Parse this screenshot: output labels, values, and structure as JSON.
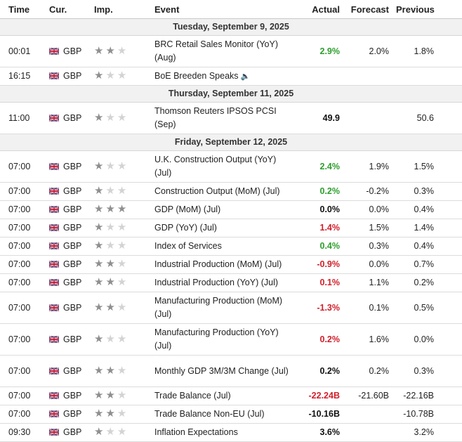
{
  "headers": {
    "time": "Time",
    "cur": "Cur.",
    "imp": "Imp.",
    "event": "Event",
    "actual": "Actual",
    "forecast": "Forecast",
    "previous": "Previous"
  },
  "rows": [
    {
      "type": "date",
      "label": "Tuesday, September 9, 2025"
    },
    {
      "type": "event",
      "time": "00:01",
      "cur": "GBP",
      "imp": 2,
      "event": "BRC Retail Sales Monitor (YoY) (Aug)",
      "actual": "2.9%",
      "actual_color": "green",
      "forecast": "2.0%",
      "previous": "1.8%",
      "h": 45
    },
    {
      "type": "event",
      "time": "16:15",
      "cur": "GBP",
      "imp": 1,
      "event": "BoE Breeden Speaks",
      "speaker": true,
      "actual": "",
      "actual_color": "black",
      "forecast": "",
      "previous": "",
      "h": 26
    },
    {
      "type": "date",
      "label": "Thursday, September 11, 2025"
    },
    {
      "type": "event",
      "time": "11:00",
      "cur": "GBP",
      "imp": 1,
      "event": "Thomson Reuters IPSOS PCSI (Sep)",
      "actual": "49.9",
      "actual_color": "black",
      "forecast": "",
      "previous": "50.6",
      "h": 45
    },
    {
      "type": "date",
      "label": "Friday, September 12, 2025"
    },
    {
      "type": "event",
      "time": "07:00",
      "cur": "GBP",
      "imp": 1,
      "event": "U.K. Construction Output (YoY) (Jul)",
      "actual": "2.4%",
      "actual_color": "green",
      "forecast": "1.9%",
      "previous": "1.5%",
      "h": 45
    },
    {
      "type": "event",
      "time": "07:00",
      "cur": "GBP",
      "imp": 1,
      "event": "Construction Output (MoM) (Jul)",
      "actual": "0.2%",
      "actual_color": "green",
      "forecast": "-0.2%",
      "previous": "0.3%",
      "h": 26
    },
    {
      "type": "event",
      "time": "07:00",
      "cur": "GBP",
      "imp": 3,
      "event": "GDP (MoM) (Jul)",
      "actual": "0.0%",
      "actual_color": "black",
      "forecast": "0.0%",
      "previous": "0.4%",
      "h": 26
    },
    {
      "type": "event",
      "time": "07:00",
      "cur": "GBP",
      "imp": 1,
      "event": "GDP (YoY) (Jul)",
      "actual": "1.4%",
      "actual_color": "red",
      "forecast": "1.5%",
      "previous": "1.4%",
      "h": 26
    },
    {
      "type": "event",
      "time": "07:00",
      "cur": "GBP",
      "imp": 1,
      "event": "Index of Services",
      "actual": "0.4%",
      "actual_color": "green",
      "forecast": "0.3%",
      "previous": "0.4%",
      "h": 26
    },
    {
      "type": "event",
      "time": "07:00",
      "cur": "GBP",
      "imp": 2,
      "event": "Industrial Production (MoM) (Jul)",
      "actual": "-0.9%",
      "actual_color": "red",
      "forecast": "0.0%",
      "previous": "0.7%",
      "h": 26
    },
    {
      "type": "event",
      "time": "07:00",
      "cur": "GBP",
      "imp": 2,
      "event": "Industrial Production (YoY) (Jul)",
      "actual": "0.1%",
      "actual_color": "red",
      "forecast": "1.1%",
      "previous": "0.2%",
      "h": 26
    },
    {
      "type": "event",
      "time": "07:00",
      "cur": "GBP",
      "imp": 2,
      "event": "Manufacturing Production (MoM) (Jul)",
      "actual": "-1.3%",
      "actual_color": "red",
      "forecast": "0.1%",
      "previous": "0.5%",
      "h": 45
    },
    {
      "type": "event",
      "time": "07:00",
      "cur": "GBP",
      "imp": 1,
      "event": "Manufacturing Production (YoY) (Jul)",
      "actual": "0.2%",
      "actual_color": "red",
      "forecast": "1.6%",
      "previous": "0.0%",
      "h": 45
    },
    {
      "type": "event",
      "time": "07:00",
      "cur": "GBP",
      "imp": 2,
      "event": "Monthly GDP 3M/3M Change (Jul)",
      "actual": "0.2%",
      "actual_color": "black",
      "forecast": "0.2%",
      "previous": "0.3%",
      "h": 45
    },
    {
      "type": "event",
      "time": "07:00",
      "cur": "GBP",
      "imp": 2,
      "event": "Trade Balance (Jul)",
      "actual": "-22.24B",
      "actual_color": "red",
      "forecast": "-21.60B",
      "previous": "-22.16B",
      "h": 26
    },
    {
      "type": "event",
      "time": "07:00",
      "cur": "GBP",
      "imp": 2,
      "event": "Trade Balance Non-EU (Jul)",
      "actual": "-10.16B",
      "actual_color": "black",
      "forecast": "",
      "previous": "-10.78B",
      "h": 26
    },
    {
      "type": "event",
      "time": "09:30",
      "cur": "GBP",
      "imp": 1,
      "event": "Inflation Expectations",
      "actual": "3.6%",
      "actual_color": "black",
      "forecast": "",
      "previous": "3.2%",
      "h": 26
    }
  ]
}
